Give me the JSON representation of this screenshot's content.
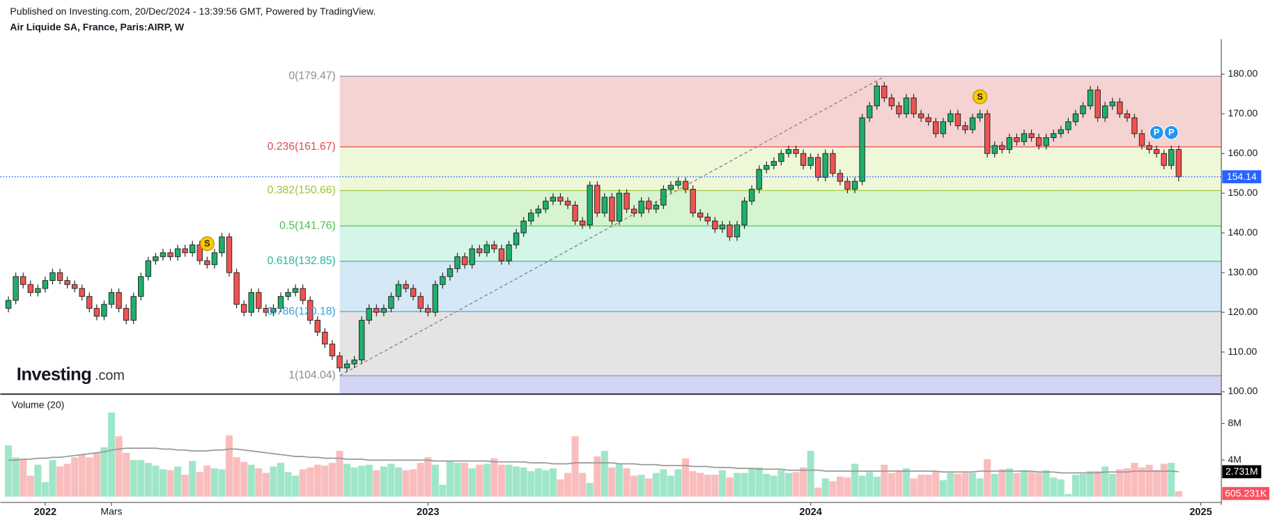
{
  "chart_data": {
    "type": "candlestick",
    "subtitle": "Published on Investing.com, 20/Dec/2024 - 13:39:56 GMT, Powered by TradingView.",
    "title": "Air Liquide SA, France, Paris:AIRP, W",
    "watermark": [
      "Investing",
      ".com"
    ],
    "up_color": "#1fae6b",
    "down_color": "#ef5350",
    "open": [
      121,
      123,
      129,
      127,
      125,
      126,
      128,
      130,
      128,
      127,
      126,
      124,
      121,
      119,
      122,
      125,
      121,
      118,
      124,
      129,
      133,
      134,
      135,
      134,
      136,
      135,
      137,
      133,
      132,
      135,
      139,
      130,
      122,
      120,
      125,
      121,
      120,
      121,
      124,
      125,
      126,
      123,
      118,
      115,
      112,
      109,
      106,
      107,
      108,
      118,
      121,
      120,
      121,
      124,
      127,
      126,
      124,
      121,
      120,
      127,
      129,
      131,
      134,
      132,
      136,
      135,
      137,
      136,
      133,
      137,
      140,
      143,
      145,
      146,
      148,
      149,
      148,
      147,
      143,
      142,
      152,
      145,
      149,
      143,
      150,
      146,
      145,
      148,
      146,
      147,
      151,
      152,
      153,
      151,
      145,
      144,
      143,
      141,
      142,
      139,
      142,
      148,
      151,
      156,
      157,
      158,
      160,
      161,
      160,
      157,
      159,
      154,
      160,
      155,
      153,
      151,
      153,
      169,
      172,
      177,
      174,
      172,
      170,
      174,
      170,
      169,
      168,
      165,
      168,
      170,
      167,
      166,
      169,
      170,
      160,
      162,
      161,
      164,
      163,
      165,
      164,
      162,
      164,
      165,
      166,
      168,
      170,
      172,
      176,
      169,
      172,
      173,
      170,
      169,
      165,
      162,
      161,
      160,
      157,
      161
    ],
    "high": [
      124,
      130,
      130,
      128,
      127,
      129,
      131,
      131,
      129,
      128,
      127,
      125,
      122,
      123,
      126,
      126,
      122,
      125,
      130,
      134,
      135,
      136,
      136,
      137,
      137,
      138,
      138,
      134,
      136,
      140,
      140,
      131,
      123,
      126,
      126,
      122,
      122,
      125,
      126,
      127,
      127,
      124,
      119,
      116,
      113,
      110,
      108,
      109,
      119,
      122,
      122,
      122,
      125,
      128,
      128,
      127,
      125,
      122,
      128,
      130,
      132,
      135,
      135,
      137,
      137,
      138,
      138,
      137,
      138,
      141,
      144,
      146,
      147,
      149,
      150,
      150,
      149,
      148,
      144,
      153,
      153,
      150,
      150,
      151,
      151,
      147,
      149,
      149,
      148,
      152,
      153,
      154,
      154,
      152,
      146,
      145,
      144,
      143,
      143,
      143,
      149,
      152,
      157,
      158,
      159,
      161,
      162,
      162,
      161,
      160,
      160,
      161,
      161,
      156,
      154,
      154,
      170,
      173,
      178,
      178,
      175,
      173,
      175,
      175,
      171,
      170,
      169,
      169,
      171,
      171,
      168,
      170,
      171,
      171,
      163,
      163,
      165,
      165,
      166,
      166,
      165,
      165,
      166,
      167,
      169,
      171,
      173,
      177,
      177,
      173,
      174,
      174,
      171,
      170,
      166,
      163,
      162,
      161,
      162,
      162
    ],
    "low": [
      120,
      122,
      126,
      124,
      124,
      125,
      127,
      127,
      126,
      125,
      123,
      120,
      118,
      118,
      121,
      120,
      117,
      117,
      123,
      128,
      132,
      133,
      133,
      133,
      134,
      134,
      132,
      131,
      131,
      134,
      129,
      121,
      119,
      119,
      120,
      119,
      119,
      120,
      123,
      124,
      122,
      117,
      114,
      111,
      108,
      105,
      105,
      106,
      107,
      117,
      119,
      119,
      120,
      123,
      125,
      123,
      120,
      119,
      119,
      126,
      128,
      130,
      131,
      131,
      134,
      134,
      135,
      132,
      132,
      136,
      139,
      142,
      144,
      145,
      147,
      147,
      146,
      142,
      141,
      141,
      144,
      144,
      142,
      142,
      145,
      144,
      144,
      145,
      145,
      146,
      150,
      151,
      150,
      144,
      143,
      142,
      140,
      140,
      138,
      138,
      141,
      147,
      150,
      155,
      156,
      157,
      159,
      159,
      156,
      156,
      153,
      153,
      154,
      152,
      150,
      150,
      152,
      168,
      171,
      173,
      171,
      169,
      169,
      169,
      168,
      167,
      164,
      164,
      167,
      166,
      165,
      165,
      168,
      159,
      159,
      160,
      160,
      162,
      162,
      163,
      161,
      161,
      163,
      164,
      165,
      167,
      169,
      171,
      168,
      168,
      171,
      169,
      168,
      164,
      161,
      160,
      159,
      156,
      156,
      153
    ],
    "close": [
      123,
      129,
      127,
      125,
      126,
      128,
      130,
      128,
      127,
      126,
      124,
      121,
      119,
      122,
      125,
      121,
      118,
      124,
      129,
      133,
      134,
      135,
      134,
      136,
      135,
      137,
      133,
      132,
      135,
      139,
      130,
      122,
      120,
      125,
      121,
      120,
      121,
      124,
      125,
      126,
      123,
      118,
      115,
      112,
      109,
      106,
      107,
      108,
      118,
      121,
      120,
      121,
      124,
      127,
      126,
      124,
      121,
      120,
      127,
      129,
      131,
      134,
      132,
      136,
      135,
      137,
      136,
      133,
      137,
      140,
      143,
      145,
      146,
      148,
      149,
      148,
      147,
      143,
      142,
      152,
      145,
      149,
      143,
      150,
      146,
      145,
      148,
      146,
      147,
      151,
      152,
      153,
      151,
      145,
      144,
      143,
      141,
      142,
      139,
      142,
      148,
      151,
      156,
      157,
      158,
      160,
      161,
      160,
      157,
      159,
      154,
      160,
      155,
      153,
      151,
      153,
      169,
      172,
      177,
      174,
      172,
      170,
      174,
      170,
      169,
      168,
      165,
      168,
      170,
      167,
      166,
      169,
      170,
      160,
      162,
      161,
      164,
      163,
      165,
      164,
      162,
      164,
      165,
      166,
      168,
      170,
      172,
      176,
      169,
      172,
      173,
      170,
      169,
      165,
      162,
      161,
      160,
      157,
      161,
      154.14
    ],
    "xlim": [
      -1.106,
      164.8
    ],
    "xticks": [
      {
        "value": 5,
        "label": "2022"
      },
      {
        "value": 14,
        "label": "Mars"
      },
      {
        "value": 57,
        "label": "2023"
      },
      {
        "value": 109,
        "label": "2024"
      },
      {
        "value": 162,
        "label": "2025"
      }
    ],
    "ylim": [
      99.59,
      188.41
    ],
    "yticks": [
      {
        "value": 100,
        "label": "100.00"
      },
      {
        "value": 110,
        "label": "110.00"
      },
      {
        "value": 120,
        "label": "120.00"
      },
      {
        "value": 130,
        "label": "130.00"
      },
      {
        "value": 140,
        "label": "140.00"
      },
      {
        "value": 150,
        "label": "150.00"
      },
      {
        "value": 160,
        "label": "160.00"
      },
      {
        "value": 170,
        "label": "170.00"
      },
      {
        "value": 180,
        "label": "180.00"
      }
    ],
    "fib": [
      {
        "label": "0(179.47)",
        "value": 179.47,
        "color": "#8a8d96",
        "fill": "#f5d3d3"
      },
      {
        "label": "0.236(161.67)",
        "value": 161.67,
        "color": "#e8484c",
        "fill": "#eef7d8"
      },
      {
        "label": "0.382(150.66)",
        "value": 150.66,
        "color": "#9cc53b",
        "fill": "#d7f4d1"
      },
      {
        "label": "0.5(141.76)",
        "value": 141.76,
        "color": "#4cbf4c",
        "fill": "#d4f5e8"
      },
      {
        "label": "0.618(132.85)",
        "value": 132.85,
        "color": "#22b59a",
        "fill": "#d5e8f5"
      },
      {
        "label": "0.786(120.18)",
        "value": 120.18,
        "color": "#3a9fd8",
        "fill": "#e4e4e4"
      },
      {
        "label": "1(104.04)",
        "value": 104.04,
        "color": "#8a8d96",
        "fill": "#d3d3f4"
      }
    ],
    "events": [
      {
        "label": "S",
        "index": 27,
        "color": "#f8cc00"
      },
      {
        "label": "S",
        "index": 132,
        "color": "#f8cc00"
      },
      {
        "label": "P",
        "index": 156,
        "color": "#2196f3"
      },
      {
        "label": "P",
        "index": 158,
        "color": "#2196f3"
      }
    ],
    "volume": {
      "title": "Volume (20)",
      "up_color": "#9fe6c9",
      "down_color": "#f9bdbd",
      "ma_color": "#999999",
      "values": [
        5600000.0,
        4300000.0,
        4100000.0,
        2300000.0,
        3500000.0,
        1600000.0,
        4000000.0,
        3300000.0,
        3600000.0,
        4300000.0,
        4600000.0,
        4300000.0,
        4800000.0,
        5400000.0,
        9200000.0,
        6600000.0,
        4800000.0,
        4000000.0,
        4000000.0,
        3700000.0,
        3400000.0,
        3000000.0,
        2900000.0,
        3300000.0,
        2400000.0,
        3900000.0,
        2700000.0,
        3400000.0,
        3100000.0,
        3000000.0,
        6700000.0,
        4300000.0,
        3800000.0,
        3500000.0,
        3100000.0,
        2600000.0,
        3300000.0,
        3700000.0,
        2700000.0,
        2300000.0,
        3000000.0,
        3200000.0,
        3500000.0,
        3400000.0,
        3700000.0,
        5000000.0,
        3600000.0,
        3200000.0,
        3400000.0,
        3500000.0,
        2900000.0,
        3300000.0,
        3600000.0,
        3200000.0,
        2900000.0,
        3000000.0,
        3700000.0,
        4300000.0,
        3500000.0,
        1300000.0,
        3900000.0,
        3700000.0,
        3700000.0,
        3100000.0,
        3500000.0,
        3600000.0,
        4200000.0,
        3500000.0,
        3500000.0,
        3300000.0,
        3200000.0,
        2800000.0,
        3100000.0,
        2900000.0,
        3100000.0,
        1900000.0,
        2600000.0,
        6600000.0,
        2600000.0,
        1500000.0,
        4400000.0,
        5000000.0,
        3200000.0,
        3600000.0,
        3100000.0,
        2300000.0,
        2400000.0,
        2000000.0,
        2600000.0,
        3000000.0,
        2300000.0,
        3000000.0,
        4200000.0,
        2800000.0,
        2600000.0,
        2400000.0,
        2400000.0,
        2900000.0,
        2100000.0,
        2600000.0,
        2600000.0,
        3100000.0,
        3200000.0,
        2500000.0,
        2300000.0,
        2900000.0,
        2600000.0,
        2700000.0,
        3200000.0,
        5000000.0,
        1000000.0,
        2000000.0,
        1700000.0,
        2200000.0,
        2100000.0,
        3600000.0,
        2300000.0,
        2700000.0,
        2200000.0,
        3500000.0,
        2600000.0,
        2900000.0,
        3100000.0,
        2000000.0,
        2400000.0,
        2400000.0,
        2800000.0,
        1800000.0,
        2600000.0,
        2500000.0,
        2600000.0,
        2600000.0,
        2000000.0,
        4100000.0,
        2500000.0,
        3000000.0,
        3100000.0,
        2600000.0,
        2900000.0,
        2700000.0,
        2600000.0,
        2900000.0,
        2100000.0,
        1900000.0,
        300000.0,
        2400000.0,
        2500000.0,
        2800000.0,
        2800000.0,
        3300000.0,
        2500000.0,
        3000000.0,
        3100000.0,
        3700000.0,
        3200000.0,
        3500000.0,
        2900000.0,
        3600000.0,
        3700000.0,
        605231
      ],
      "value_label_last": "605.231K",
      "ma": [
        4000000.0,
        4000000.0,
        4100000.0,
        4100000.0,
        4200000.0,
        4200000.0,
        4300000.0,
        4300000.0,
        4400000.0,
        4500000.0,
        4600000.0,
        4700000.0,
        4800000.0,
        4900000.0,
        5100000.0,
        5200000.0,
        5300000.0,
        5300000.0,
        5300000.0,
        5300000.0,
        5300000.0,
        5200000.0,
        5200000.0,
        5100000.0,
        5100000.0,
        5000000.0,
        5000000.0,
        5000000.0,
        5100000.0,
        5100000.0,
        5200000.0,
        5200000.0,
        5100000.0,
        5000000.0,
        4900000.0,
        4800000.0,
        4700000.0,
        4600000.0,
        4500000.0,
        4400000.0,
        4400000.0,
        4300000.0,
        4300000.0,
        4200000.0,
        4200000.0,
        4200000.0,
        4100000.0,
        4100000.0,
        4100000.0,
        4000000.0,
        4000000.0,
        4000000.0,
        4000000.0,
        4000000.0,
        4000000.0,
        4000000.0,
        4000000.0,
        4000000.0,
        3900000.0,
        3900000.0,
        3900000.0,
        3900000.0,
        3900000.0,
        3900000.0,
        3900000.0,
        3900000.0,
        3800000.0,
        3800000.0,
        3800000.0,
        3800000.0,
        3800000.0,
        3700000.0,
        3700000.0,
        3700000.0,
        3600000.0,
        3600000.0,
        3600000.0,
        3700000.0,
        3700000.0,
        3700000.0,
        3700000.0,
        3700000.0,
        3700000.0,
        3600000.0,
        3600000.0,
        3600000.0,
        3500000.0,
        3500000.0,
        3500000.0,
        3400000.0,
        3400000.0,
        3400000.0,
        3400000.0,
        3300000.0,
        3300000.0,
        3300000.0,
        3200000.0,
        3200000.0,
        3200000.0,
        3100000.0,
        3100000.0,
        3100000.0,
        3000000.0,
        3000000.0,
        3000000.0,
        3000000.0,
        2900000.0,
        2900000.0,
        2900000.0,
        2900000.0,
        2900000.0,
        2800000.0,
        2800000.0,
        2800000.0,
        2800000.0,
        2800000.0,
        2800000.0,
        2800000.0,
        2800000.0,
        2800000.0,
        2800000.0,
        2800000.0,
        2800000.0,
        2800000.0,
        2800000.0,
        2800000.0,
        2800000.0,
        2700000.0,
        2700000.0,
        2700000.0,
        2700000.0,
        2700000.0,
        2800000.0,
        2800000.0,
        2800000.0,
        2800000.0,
        2800000.0,
        2800000.0,
        2800000.0,
        2800000.0,
        2700000.0,
        2700000.0,
        2700000.0,
        2600000.0,
        2600000.0,
        2600000.0,
        2600000.0,
        2600000.0,
        2600000.0,
        2700000.0,
        2700000.0,
        2700000.0,
        2700000.0,
        2800000.0,
        2800000.0,
        2800000.0,
        2800000.0,
        2800000.0,
        2800000.0,
        2731000.0
      ],
      "ma_label_last": "2.731M",
      "ylim": [
        0,
        11020000.0
      ],
      "yticks": [
        {
          "value": 4000000.0,
          "label": "4M"
        },
        {
          "value": 8000000.0,
          "label": "8M"
        }
      ]
    }
  }
}
